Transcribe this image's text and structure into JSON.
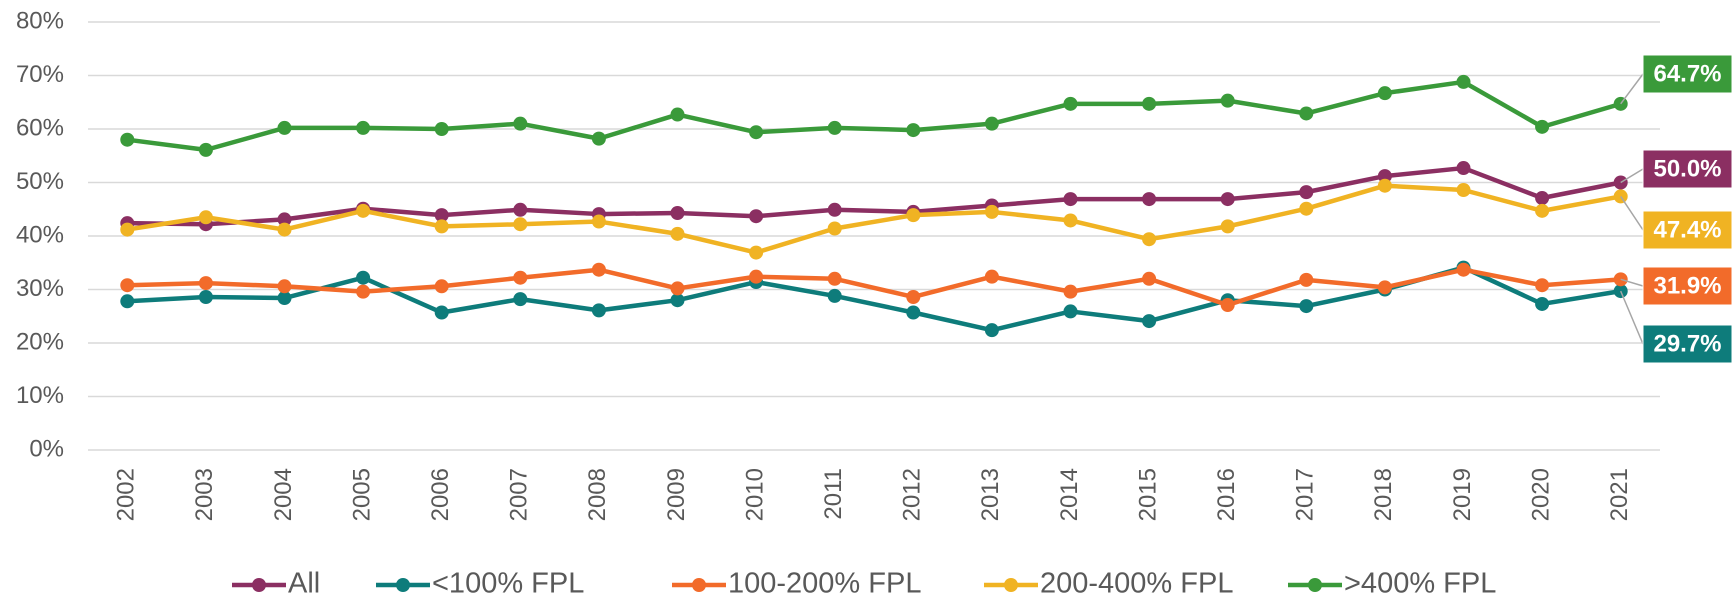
{
  "chart_data": {
    "type": "line",
    "categories": [
      "2002",
      "2003",
      "2004",
      "2005",
      "2006",
      "2007",
      "2008",
      "2009",
      "2010",
      "2011",
      "2012",
      "2013",
      "2014",
      "2015",
      "2016",
      "2017",
      "2018",
      "2019",
      "2020",
      "2021"
    ],
    "series": [
      {
        "name": "All",
        "color": "#8b2f62",
        "values": [
          42.4,
          42.2,
          43.1,
          45.1,
          43.9,
          44.9,
          44.1,
          44.3,
          43.7,
          44.9,
          44.5,
          45.7,
          46.9,
          46.9,
          46.9,
          48.2,
          51.2,
          52.7,
          47.1,
          50.0
        ],
        "value_labels": [
          null,
          null,
          null,
          null,
          null,
          null,
          null,
          null,
          null,
          null,
          null,
          null,
          null,
          null,
          null,
          null,
          null,
          null,
          null,
          "50.0%"
        ]
      },
      {
        "name": "<100% FPL",
        "color": "#0e7c7b",
        "values": [
          27.8,
          28.6,
          28.4,
          32.2,
          25.7,
          28.2,
          26.1,
          28.0,
          31.4,
          28.8,
          25.7,
          22.4,
          25.9,
          24.1,
          28.0,
          26.9,
          30.0,
          34.1,
          27.3,
          29.7
        ],
        "value_labels": [
          null,
          null,
          null,
          null,
          null,
          null,
          null,
          null,
          null,
          null,
          null,
          null,
          null,
          null,
          null,
          null,
          null,
          null,
          null,
          "29.7%"
        ]
      },
      {
        "name": "100-200% FPL",
        "color": "#f26b2a",
        "values": [
          30.8,
          31.2,
          30.6,
          29.6,
          30.6,
          32.2,
          33.7,
          30.2,
          32.4,
          32.0,
          28.6,
          32.4,
          29.6,
          32.0,
          27.1,
          31.8,
          30.4,
          33.7,
          30.8,
          31.9
        ],
        "value_labels": [
          null,
          null,
          null,
          null,
          null,
          null,
          null,
          null,
          null,
          null,
          null,
          null,
          null,
          null,
          null,
          null,
          null,
          null,
          null,
          "31.9%"
        ]
      },
      {
        "name": "200-400% FPL",
        "color": "#f0b323",
        "values": [
          41.2,
          43.5,
          41.2,
          44.7,
          41.8,
          42.2,
          42.7,
          40.4,
          36.9,
          41.4,
          43.9,
          44.5,
          42.9,
          39.4,
          41.8,
          45.1,
          49.4,
          48.6,
          44.7,
          47.4
        ],
        "value_labels": [
          null,
          null,
          null,
          null,
          null,
          null,
          null,
          null,
          null,
          null,
          null,
          null,
          null,
          null,
          null,
          null,
          null,
          null,
          null,
          "47.4%"
        ]
      },
      {
        "name": ">400% FPL",
        "color": "#3a9a3a",
        "values": [
          58.0,
          56.1,
          60.2,
          60.2,
          60.0,
          61.0,
          58.2,
          62.7,
          59.4,
          60.2,
          59.8,
          61.0,
          64.7,
          64.7,
          65.3,
          62.9,
          66.7,
          68.8,
          60.4,
          64.7
        ],
        "value_labels": [
          null,
          null,
          null,
          null,
          null,
          null,
          null,
          null,
          null,
          null,
          null,
          null,
          null,
          null,
          null,
          null,
          null,
          null,
          null,
          "64.7%"
        ]
      }
    ],
    "ylim": [
      0,
      80
    ],
    "yticks": [
      {
        "value": 0,
        "label": "0%"
      },
      {
        "value": 10,
        "label": "10%"
      },
      {
        "value": 20,
        "label": "20%"
      },
      {
        "value": 30,
        "label": "30%"
      },
      {
        "value": 40,
        "label": "40%"
      },
      {
        "value": 50,
        "label": "50%"
      },
      {
        "value": 60,
        "label": "60%"
      },
      {
        "value": 70,
        "label": "70%"
      },
      {
        "value": 80,
        "label": "80%"
      }
    ],
    "grid": true,
    "legend": "bottom"
  }
}
